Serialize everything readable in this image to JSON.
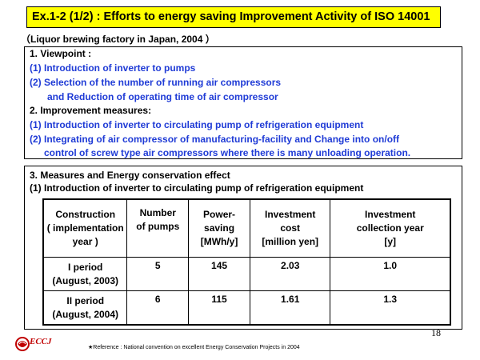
{
  "title": "Ex.1-2 (1/2) : Efforts to energy saving Improvement Activity of ISO 14001",
  "subtitle": "（Liquor brewing factory  in Japan, 2004 ）",
  "viewpoint": {
    "heading": "1. Viewpoint :",
    "items": [
      "(1) Introduction of inverter to pumps",
      "(2) Selection of the number of running air compressors",
      "and Reduction of operating time of  air compressor"
    ]
  },
  "improvement": {
    "heading": "2. Improvement measures:",
    "items": [
      "(1) Introduction of inverter to circulating pump of refrigeration  equipment",
      "(2) Integrating of air compressor of manufacturing-facility  and Change into on/off",
      "control of screw type air compressors where there is many unloading operation."
    ]
  },
  "measures": {
    "heading": "3. Measures  and Energy conservation  effect",
    "subheading": "(1) Introduction of inverter to circulating pump of refrigeration  equipment"
  },
  "table": {
    "headers": [
      [
        "Construction",
        "( implementation",
        "year )"
      ],
      [
        "Number",
        "of pumps"
      ],
      [
        "Power-",
        "saving",
        "[MWh/y]"
      ],
      [
        "Investment",
        "cost",
        "[million yen]"
      ],
      [
        "Investment",
        "collection year",
        "[y]"
      ]
    ],
    "rows": [
      {
        "period": "I period",
        "date": "(August, 2003)",
        "pumps": "5",
        "saving": "145",
        "cost": "2.03",
        "collection": "1.0"
      },
      {
        "period": "II period",
        "date": "(August, 2004)",
        "pumps": "6",
        "saving": "115",
        "cost": "1.61",
        "collection": "1.3"
      }
    ]
  },
  "page_number": "18",
  "logo_text": "ECCJ",
  "reference": "★Reference  : National  convention  on  excellent  Energy Conservation   Projects  in 2004",
  "colors": {
    "title_bg": "#ffff00",
    "blue_text": "#1f3bd6",
    "logo_red": "#c00000"
  }
}
